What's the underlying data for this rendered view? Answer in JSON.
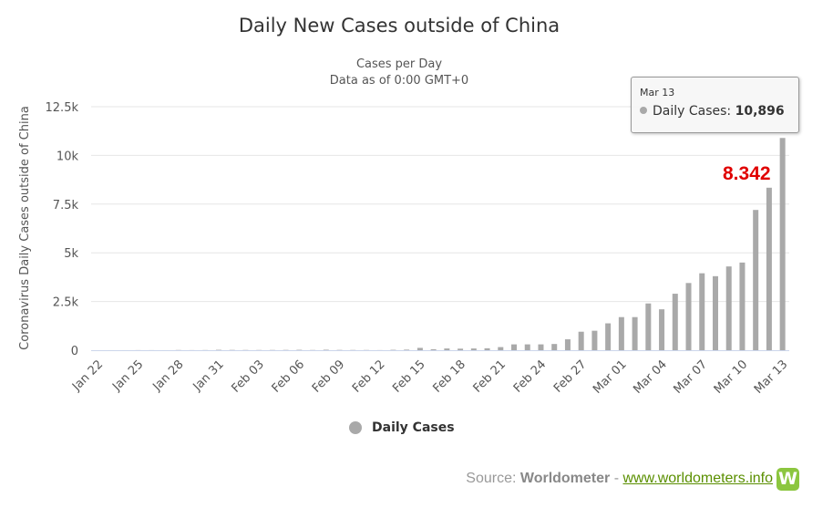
{
  "colors": {
    "bar": "#a9a9a9",
    "annotation": "#e00000",
    "link": "#5a8f00",
    "logo": "#8cc63f",
    "axis_line": "#ccd6eb",
    "grid": "#e6e6e6"
  },
  "tooltip": {
    "date": "Mar 13",
    "series_label": "Daily Cases:",
    "value": "10,896"
  },
  "annotation": "8.342",
  "source": {
    "prefix": "Source:",
    "name": "Worldometer",
    "separator": "-",
    "link": "www.worldometers.info",
    "logo_letter": "W",
    "logo_icon": "worldometers-logo-icon"
  },
  "chart_data": {
    "type": "bar",
    "title": "Daily New Cases outside of China",
    "subtitle": [
      "Cases per Day",
      "Data as of 0:00 GMT+0"
    ],
    "ylabel": "Coronavirus Daily Cases outside of China",
    "xlabel": "",
    "ylim": [
      0,
      12500
    ],
    "yticks": [
      0,
      2500,
      5000,
      7500,
      10000,
      12500
    ],
    "ytick_labels": [
      "0",
      "2.5k",
      "5k",
      "7.5k",
      "10k",
      "12.5k"
    ],
    "grid": true,
    "legend": "bottom-center",
    "xtick_labels": [
      "Jan 22",
      "Jan 25",
      "Jan 28",
      "Jan 31",
      "Feb 03",
      "Feb 06",
      "Feb 09",
      "Feb 12",
      "Feb 15",
      "Feb 18",
      "Feb 21",
      "Feb 24",
      "Feb 27",
      "Mar 01",
      "Mar 04",
      "Mar 07",
      "Mar 10",
      "Mar 13"
    ],
    "categories": [
      "Jan 22",
      "Jan 23",
      "Jan 24",
      "Jan 25",
      "Jan 26",
      "Jan 27",
      "Jan 28",
      "Jan 29",
      "Jan 30",
      "Jan 31",
      "Feb 01",
      "Feb 02",
      "Feb 03",
      "Feb 04",
      "Feb 05",
      "Feb 06",
      "Feb 07",
      "Feb 08",
      "Feb 09",
      "Feb 10",
      "Feb 11",
      "Feb 12",
      "Feb 13",
      "Feb 14",
      "Feb 15",
      "Feb 16",
      "Feb 17",
      "Feb 18",
      "Feb 19",
      "Feb 20",
      "Feb 21",
      "Feb 22",
      "Feb 23",
      "Feb 24",
      "Feb 25",
      "Feb 26",
      "Feb 27",
      "Feb 28",
      "Feb 29",
      "Mar 01",
      "Mar 02",
      "Mar 03",
      "Mar 04",
      "Mar 05",
      "Mar 06",
      "Mar 07",
      "Mar 08",
      "Mar 09",
      "Mar 10",
      "Mar 11",
      "Mar 12",
      "Mar 13"
    ],
    "series": [
      {
        "name": "Daily Cases",
        "values": [
          0,
          2,
          2,
          5,
          4,
          2,
          10,
          5,
          8,
          20,
          15,
          12,
          10,
          12,
          15,
          20,
          10,
          25,
          15,
          12,
          10,
          5,
          20,
          30,
          120,
          50,
          90,
          80,
          90,
          100,
          160,
          300,
          300,
          300,
          320,
          560,
          950,
          1000,
          1380,
          1700,
          1700,
          2400,
          2100,
          2900,
          3450,
          3950,
          3800,
          4300,
          4500,
          7200,
          8342,
          10896
        ]
      }
    ]
  }
}
